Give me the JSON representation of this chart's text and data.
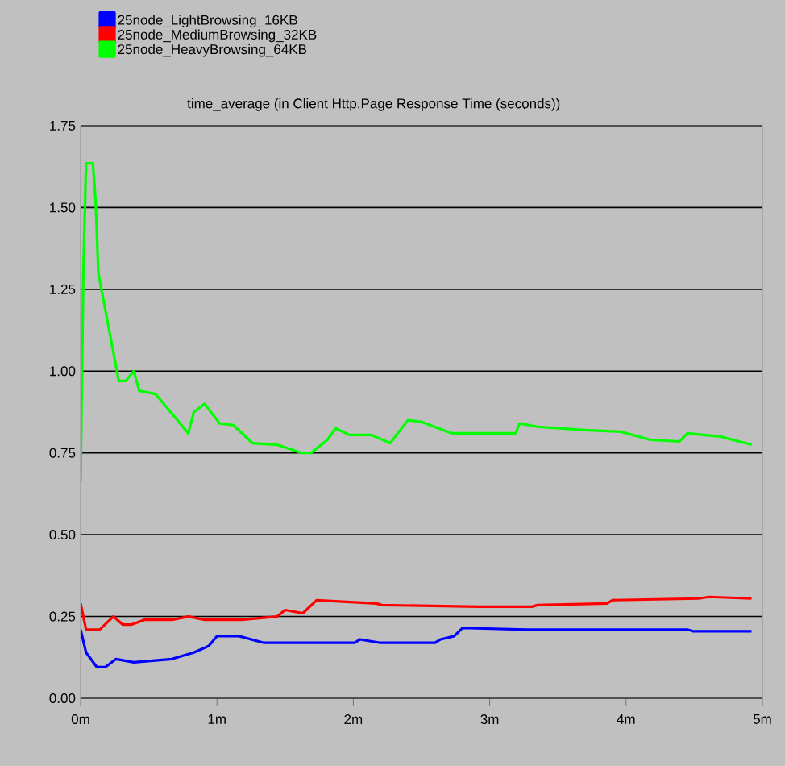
{
  "chart_data": {
    "type": "line",
    "title": "time_average (in Client Http.Page Response Time (seconds))",
    "xlim": [
      0,
      5
    ],
    "ylim": [
      0,
      1.75
    ],
    "xticks": [
      {
        "value": 0,
        "label": "0m"
      },
      {
        "value": 1,
        "label": "1m"
      },
      {
        "value": 2,
        "label": "2m"
      },
      {
        "value": 3,
        "label": "3m"
      },
      {
        "value": 4,
        "label": "4m"
      },
      {
        "value": 5,
        "label": "5m"
      }
    ],
    "yticks": [
      {
        "value": 0,
        "label": "0.00"
      },
      0.25,
      {
        "value": 0.5,
        "label": "0.50"
      },
      0.75,
      {
        "value": 1,
        "label": "1.00"
      },
      1.25,
      {
        "value": 1.5,
        "label": "1.50"
      },
      1.75
    ],
    "grid": "y",
    "legend": "top left",
    "line_style": "solid",
    "marker": "none",
    "series": [
      {
        "name": "25node_LightBrowsing_16KB",
        "color": "#0000ff",
        "x": [
          0,
          0.04,
          0.12,
          0.18,
          0.26,
          0.39,
          0.67,
          0.83,
          0.94,
          1.0,
          1.16,
          1.34,
          2.01,
          2.05,
          2.19,
          2.6,
          2.64,
          2.74,
          2.8,
          3.27,
          3.7,
          4.45,
          4.49,
          4.92
        ],
        "values": [
          0.21,
          0.14,
          0.095,
          0.095,
          0.12,
          0.11,
          0.12,
          0.14,
          0.16,
          0.19,
          0.19,
          0.17,
          0.17,
          0.18,
          0.17,
          0.17,
          0.18,
          0.19,
          0.215,
          0.21,
          0.21,
          0.21,
          0.205,
          0.205
        ]
      },
      {
        "name": "25node_MediumBrowsing_32KB",
        "color": "#ff0000",
        "x": [
          0,
          0.04,
          0.14,
          0.24,
          0.31,
          0.37,
          0.47,
          0.67,
          0.79,
          0.91,
          1.18,
          1.44,
          1.5,
          1.63,
          1.73,
          2.17,
          2.21,
          2.92,
          3.31,
          3.35,
          3.86,
          3.9,
          4.53,
          4.61,
          4.92
        ],
        "values": [
          0.29,
          0.21,
          0.21,
          0.25,
          0.225,
          0.225,
          0.24,
          0.24,
          0.25,
          0.24,
          0.24,
          0.25,
          0.27,
          0.26,
          0.3,
          0.29,
          0.285,
          0.28,
          0.28,
          0.285,
          0.29,
          0.3,
          0.305,
          0.31,
          0.305
        ]
      },
      {
        "name": "25node_HeavyBrowsing_64KB",
        "color": "#00ff00",
        "x": [
          0,
          0.02,
          0.04,
          0.09,
          0.11,
          0.13,
          0.28,
          0.33,
          0.39,
          0.43,
          0.55,
          0.65,
          0.79,
          0.83,
          0.91,
          1.02,
          1.12,
          1.26,
          1.44,
          1.62,
          1.69,
          1.81,
          1.87,
          1.97,
          2.13,
          2.27,
          2.4,
          2.5,
          2.72,
          3.19,
          3.22,
          3.35,
          3.7,
          3.96,
          4.18,
          4.39,
          4.45,
          4.69,
          4.92
        ],
        "values": [
          0.66,
          1.3,
          1.635,
          1.635,
          1.52,
          1.3,
          0.97,
          0.97,
          1.0,
          0.94,
          0.93,
          0.88,
          0.81,
          0.875,
          0.9,
          0.84,
          0.835,
          0.78,
          0.775,
          0.75,
          0.75,
          0.79,
          0.825,
          0.805,
          0.805,
          0.78,
          0.85,
          0.845,
          0.81,
          0.81,
          0.84,
          0.83,
          0.82,
          0.815,
          0.79,
          0.785,
          0.81,
          0.8,
          0.775
        ]
      }
    ]
  }
}
